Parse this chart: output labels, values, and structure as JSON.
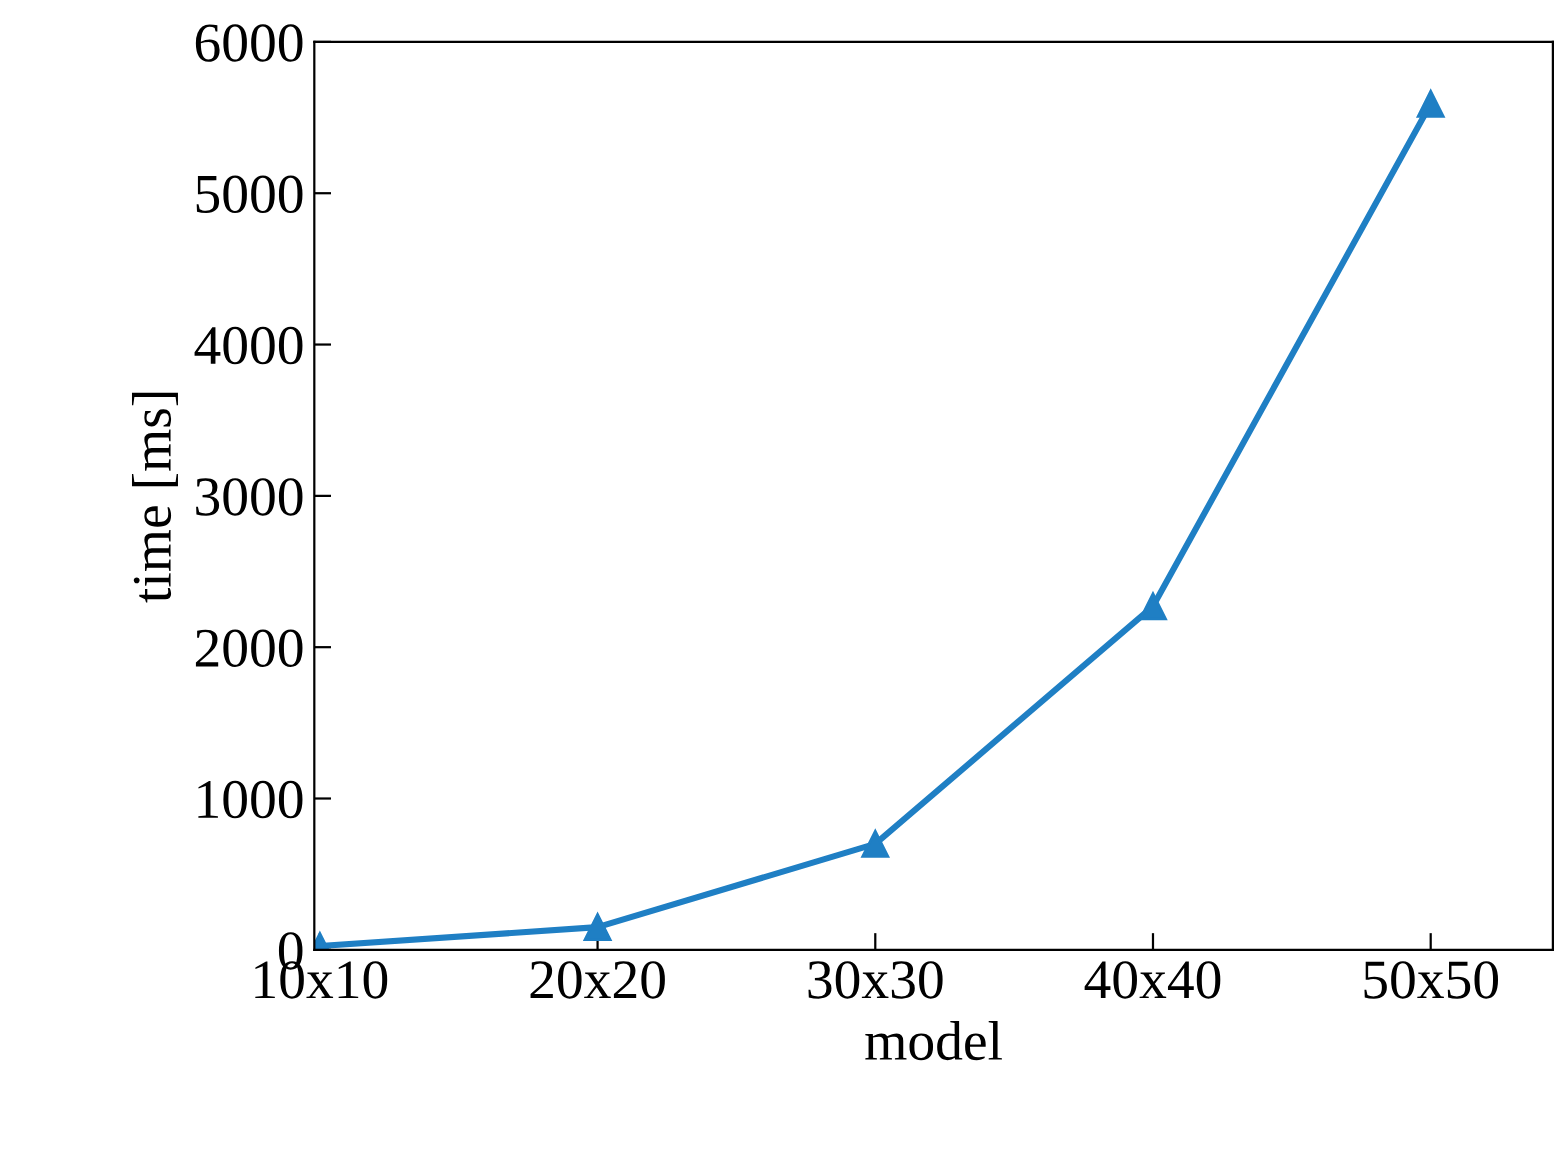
{
  "chart_data": {
    "type": "line",
    "xlabel": "model",
    "ylabel": "time [ms]",
    "categories": [
      "10x10",
      "20x20",
      "30x30",
      "40x40",
      "50x50"
    ],
    "series": [
      {
        "color": "#1f7fc4",
        "values": [
          25,
          150,
          700,
          2270,
          5590
        ]
      }
    ],
    "ylim": [
      0,
      6000
    ],
    "yticks": [
      0,
      1000,
      2000,
      3000,
      4000,
      5000,
      6000
    ],
    "grid": false,
    "marker": "triangle",
    "line_style": "solid",
    "legend": false
  }
}
